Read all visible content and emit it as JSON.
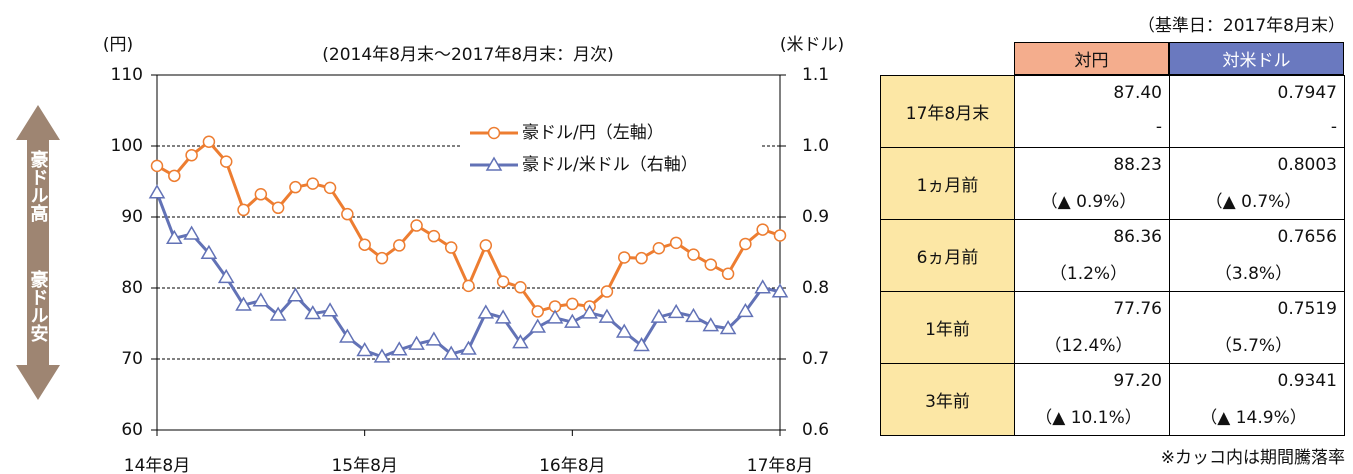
{
  "chart_data": {
    "type": "line",
    "subtitle": "(2014年8月末～2017年8月末：月次)",
    "ylabel": "(円)",
    "y2label": "(米ドル)",
    "annotations": [
      "豪ドル高",
      "豪ドル安"
    ],
    "categories": [
      "14年8月",
      null,
      null,
      null,
      null,
      null,
      null,
      null,
      null,
      null,
      null,
      null,
      "15年8月",
      null,
      null,
      null,
      null,
      null,
      null,
      null,
      null,
      null,
      null,
      null,
      "16年8月",
      null,
      null,
      null,
      null,
      null,
      null,
      null,
      null,
      null,
      null,
      null,
      "17年8月"
    ],
    "series": [
      {
        "name": "豪ドル/円（左軸）",
        "color": "#ed7d31",
        "marker": "circle",
        "values": [
          97.2,
          95.8,
          98.7,
          100.6,
          97.8,
          91,
          93.2,
          91.3,
          94.2,
          94.7,
          94.1,
          90.4,
          86.1,
          84.2,
          86,
          88.8,
          87.3,
          85.7,
          80.3,
          86,
          80.9,
          80.1,
          76.7,
          77.4,
          77.76,
          77.4,
          79.5,
          84.3,
          84.2,
          85.6,
          86.36,
          84.7,
          83.3,
          82,
          86.2,
          88.23,
          87.4
        ]
      },
      {
        "name": "豪ドル/米ドル（右軸）",
        "color": "#6272b6",
        "marker": "triangle",
        "axis": "y2",
        "values": [
          0.9341,
          0.87,
          0.876,
          0.849,
          0.815,
          0.776,
          0.782,
          0.762,
          0.789,
          0.764,
          0.768,
          0.731,
          0.712,
          0.703,
          0.713,
          0.721,
          0.727,
          0.707,
          0.714,
          0.765,
          0.758,
          0.723,
          0.745,
          0.758,
          0.7519,
          0.765,
          0.759,
          0.738,
          0.719,
          0.759,
          0.7656,
          0.76,
          0.747,
          0.743,
          0.767,
          0.8003,
          0.7947
        ]
      }
    ],
    "ylim": [
      60,
      110
    ],
    "yticks": [
      60,
      70,
      80,
      90,
      100,
      110
    ],
    "y2lim": [
      0.6,
      1.1
    ],
    "y2ticks": [
      0.6,
      0.7,
      0.8,
      0.9,
      {
        "value": 1,
        "label": "1.0"
      },
      1.1
    ],
    "grid": true
  },
  "table": {
    "note": "（基準日：2017年8月末）",
    "header": [
      "対円",
      "対米ドル"
    ],
    "rows": [
      [
        "17年8月末",
        "87.40",
        "0.7947",
        "-",
        "-"
      ],
      [
        "1ヵ月前",
        "88.23",
        "0.8003",
        "（▲ 0.9%）",
        "（▲ 0.7%）"
      ],
      [
        "6ヵ月前",
        "86.36",
        "0.7656",
        "（1.2%）",
        "（3.8%）"
      ],
      [
        "1年前",
        "77.76",
        "0.7519",
        "（12.4%）",
        "（5.7%）"
      ],
      [
        "3年前",
        "97.20",
        "0.9341",
        "（▲ 10.1%）",
        "（▲ 14.9%）"
      ]
    ],
    "footnote": "※カッコ内は期間騰落率"
  }
}
